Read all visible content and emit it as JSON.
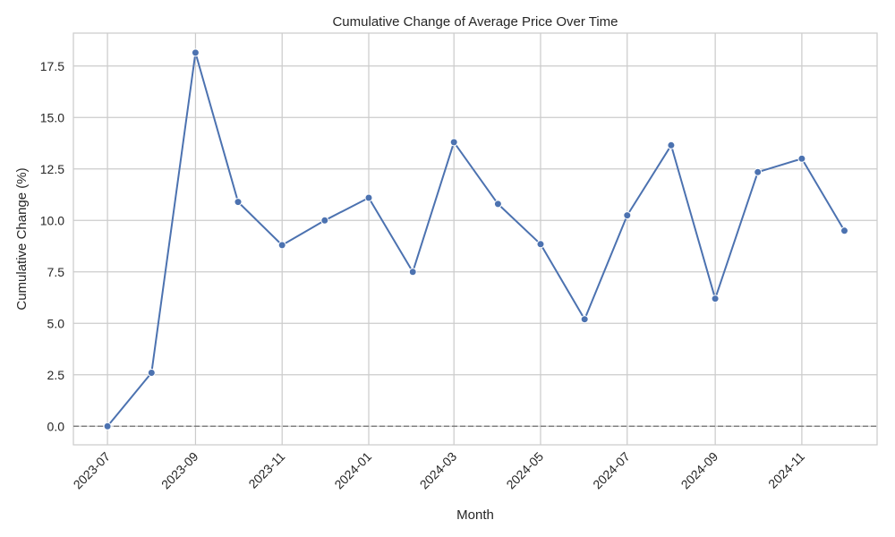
{
  "chart_data": {
    "type": "line",
    "title": "Cumulative Change of Average Price Over Time",
    "xlabel": "Month",
    "ylabel": "Cumulative Change (%)",
    "x_ticks": [
      "2023-07",
      "2023-09",
      "2023-11",
      "2024-01",
      "2024-03",
      "2024-05",
      "2024-07",
      "2024-09",
      "2024-11"
    ],
    "y_ticks": [
      "0.0",
      "2.5",
      "5.0",
      "7.5",
      "10.0",
      "12.5",
      "15.0",
      "17.5"
    ],
    "ylim": [
      -0.9,
      19.1
    ],
    "xlim": [
      "2023-06-07",
      "2024-12-24"
    ],
    "grid": true,
    "reference_line": {
      "y": 0,
      "style": "dashed",
      "color": "#808080"
    },
    "series": [
      {
        "color": "#4c72b0",
        "marker": "circle",
        "x": [
          "2023-07-01",
          "2023-08-01",
          "2023-09-01",
          "2023-10-01",
          "2023-11-01",
          "2023-12-01",
          "2024-01-01",
          "2024-02-01",
          "2024-03-01",
          "2024-04-01",
          "2024-05-01",
          "2024-06-01",
          "2024-07-01",
          "2024-08-01",
          "2024-09-01",
          "2024-10-01",
          "2024-11-01",
          "2024-12-01"
        ],
        "values": [
          0.0,
          2.6,
          18.15,
          10.9,
          8.8,
          10.0,
          11.1,
          7.5,
          13.8,
          10.8,
          8.85,
          5.2,
          10.25,
          13.65,
          6.2,
          12.35,
          13.0,
          9.5
        ]
      }
    ]
  }
}
